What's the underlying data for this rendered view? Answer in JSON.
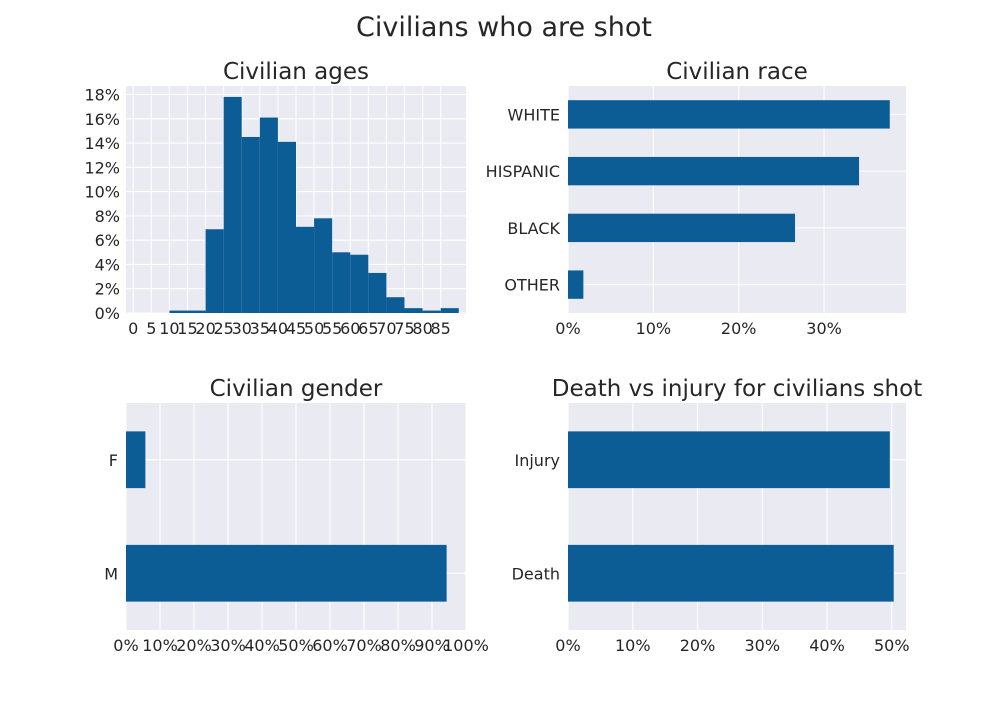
{
  "figure": {
    "title": "Civilians who are shot"
  },
  "chart_data": [
    {
      "type": "histogram",
      "title": "Civilian ages",
      "xlabel": "",
      "ylabel": "",
      "bin_edges": [
        0,
        5,
        10,
        15,
        20,
        25,
        30,
        35,
        40,
        45,
        50,
        55,
        60,
        65,
        70,
        75,
        80,
        85,
        90
      ],
      "values": [
        0,
        0,
        0.2,
        0.2,
        6.9,
        17.8,
        14.5,
        16.1,
        14.1,
        7.1,
        7.8,
        5.0,
        4.8,
        3.3,
        1.3,
        0.4,
        0.2,
        0.4
      ],
      "xticks": [
        0,
        5,
        10,
        15,
        20,
        25,
        30,
        35,
        40,
        45,
        50,
        55,
        60,
        65,
        70,
        75,
        80,
        85
      ],
      "xlim": [
        -2,
        92
      ],
      "yticks": [
        "0%",
        "2%",
        "4%",
        "6%",
        "8%",
        "10%",
        "12%",
        "14%",
        "16%",
        "18%"
      ],
      "ytick_values": [
        0,
        2,
        4,
        6,
        8,
        10,
        12,
        14,
        16,
        18
      ],
      "ylim": [
        0,
        18.7
      ],
      "grid": true
    },
    {
      "type": "barh",
      "title": "Civilian race",
      "categories": [
        "WHITE",
        "HISPANIC",
        "BLACK",
        "OTHER"
      ],
      "values": [
        37.7,
        34.1,
        26.6,
        1.8
      ],
      "xticks": [
        "0%",
        "10%",
        "20%",
        "30%"
      ],
      "xtick_values": [
        0,
        10,
        20,
        30
      ],
      "xlim": [
        0,
        39.6
      ],
      "grid": true
    },
    {
      "type": "barh",
      "title": "Civilian gender",
      "categories": [
        "F",
        "M"
      ],
      "values": [
        5.7,
        94.3
      ],
      "xticks": [
        "0%",
        "10%",
        "20%",
        "30%",
        "40%",
        "50%",
        "60%",
        "70%",
        "80%",
        "90%",
        "100%"
      ],
      "xtick_values": [
        0,
        10,
        20,
        30,
        40,
        50,
        60,
        70,
        80,
        90,
        100
      ],
      "xlim": [
        0,
        100
      ],
      "grid": true
    },
    {
      "type": "barh",
      "title": "Death vs injury for civilians shot",
      "categories": [
        "Injury",
        "Death"
      ],
      "values": [
        49.7,
        50.3
      ],
      "xticks": [
        "0%",
        "10%",
        "20%",
        "30%",
        "40%",
        "50%"
      ],
      "xtick_values": [
        0,
        10,
        20,
        30,
        40,
        50
      ],
      "xlim": [
        0,
        52.2
      ],
      "grid": true
    }
  ],
  "colors": {
    "bar": "#0c5d96",
    "plot_background": "#eaeaf2",
    "grid": "#ffffff",
    "text": "#262626"
  }
}
